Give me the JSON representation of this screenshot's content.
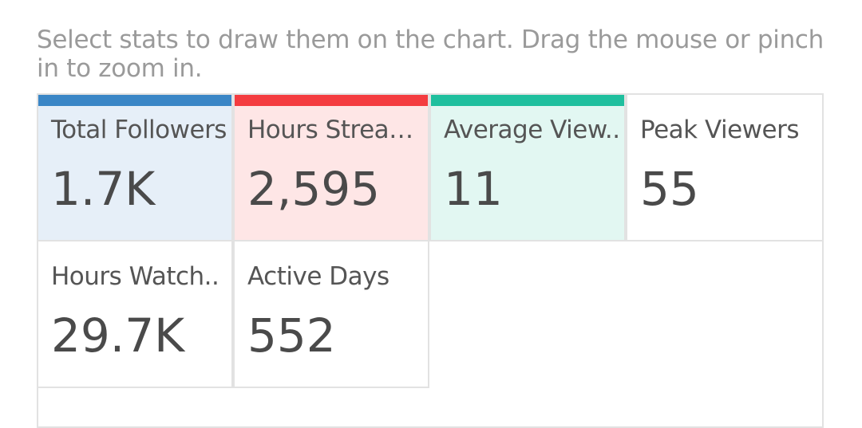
{
  "instruction": "Select stats to draw them on the chart. Drag the mouse or pinch in to zoom in.",
  "tiles": [
    {
      "label": "Total Followers",
      "value": "1.7K",
      "color": "#3a86c6"
    },
    {
      "label": "Hours Strea…",
      "value": "2,595",
      "color": "#f43c40"
    },
    {
      "label": "Average View..",
      "value": "11",
      "color": "#1fbf9e"
    },
    {
      "label": "Peak Viewers",
      "value": "55"
    },
    {
      "label": "Hours Watch..",
      "value": "29.7K"
    },
    {
      "label": "Active Days",
      "value": "552"
    }
  ]
}
